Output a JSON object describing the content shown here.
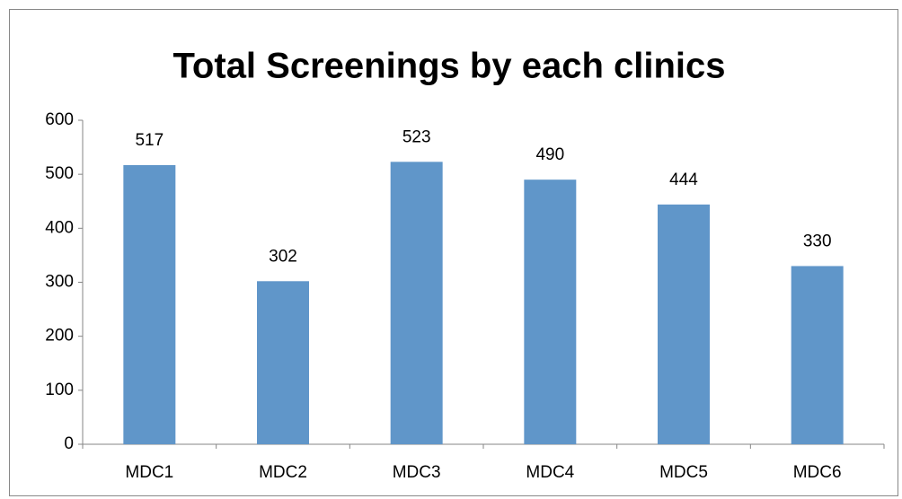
{
  "chart_data": {
    "type": "bar",
    "title": "Total Screenings by each clinics",
    "categories": [
      "MDC1",
      "MDC2",
      "MDC3",
      "MDC4",
      "MDC5",
      "MDC6"
    ],
    "values": [
      517,
      302,
      523,
      490,
      444,
      330
    ],
    "color": "#6096c9",
    "ylim": [
      0,
      600
    ],
    "yticks": [
      0,
      100,
      200,
      300,
      400,
      500,
      600
    ],
    "grid": false,
    "data_labels": true
  }
}
